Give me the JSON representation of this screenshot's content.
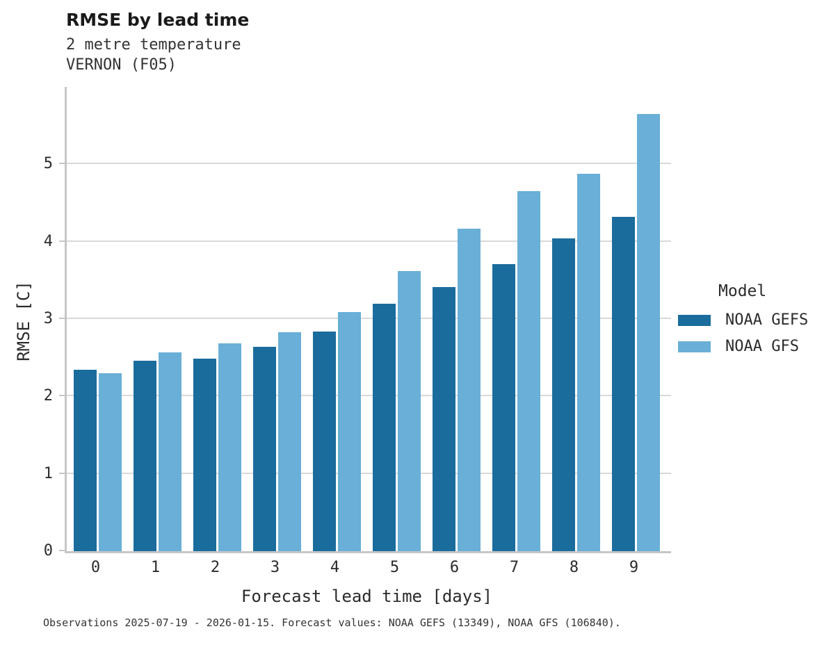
{
  "header": {
    "title": "RMSE by lead time",
    "subtitle_line1": "2 metre temperature",
    "subtitle_line2": "VERNON (F05)"
  },
  "legend": {
    "title": "Model",
    "entries": [
      {
        "label": "NOAA GEFS",
        "color": "#1a6c9c"
      },
      {
        "label": "NOAA GFS",
        "color": "#69afd7"
      }
    ]
  },
  "caption": "Observations 2025-07-19 - 2026-01-15. Forecast values: NOAA GEFS (13349), NOAA GFS (106840).",
  "chart_data": {
    "type": "bar",
    "title": "RMSE by lead time",
    "subtitle": [
      "2 metre temperature",
      "VERNON (F05)"
    ],
    "xlabel": "Forecast lead time [days]",
    "ylabel": "RMSE [C]",
    "categories": [
      "0",
      "1",
      "2",
      "3",
      "4",
      "5",
      "6",
      "7",
      "8",
      "9"
    ],
    "yticks": [
      0,
      1,
      2,
      3,
      4,
      5
    ],
    "ylim": [
      0,
      6
    ],
    "grid": "horizontal",
    "legend_position": "right",
    "legend_title": "Model",
    "series": [
      {
        "name": "NOAA GEFS",
        "color": "#1a6c9c",
        "values": [
          2.34,
          2.46,
          2.49,
          2.64,
          2.84,
          3.2,
          3.41,
          3.71,
          4.04,
          4.32
        ]
      },
      {
        "name": "NOAA GFS",
        "color": "#69afd7",
        "values": [
          2.3,
          2.57,
          2.69,
          2.83,
          3.09,
          3.62,
          4.17,
          4.65,
          4.88,
          5.65
        ]
      }
    ]
  }
}
